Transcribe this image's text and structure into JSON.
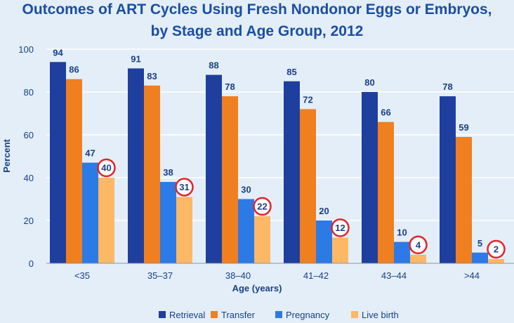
{
  "chart_data": {
    "type": "bar",
    "title": "Outcomes of ART Cycles Using Fresh Nondonor Eggs or Embryos,",
    "subtitle": "by Stage and Age Group, 2012",
    "xlabel": "Age (years)",
    "ylabel": "Percent",
    "ylim": [
      0,
      100
    ],
    "yticks": [
      0,
      20,
      40,
      60,
      80,
      100
    ],
    "categories": [
      "<35",
      "35–37",
      "38–40",
      "41–42",
      "43–44",
      ">44"
    ],
    "series": [
      {
        "name": "Retrieval",
        "color": "#1f3f9e",
        "values": [
          94,
          91,
          88,
          85,
          80,
          78
        ]
      },
      {
        "name": "Transfer",
        "color": "#f07f1f",
        "values": [
          86,
          83,
          78,
          72,
          66,
          59
        ]
      },
      {
        "name": "Pregnancy",
        "color": "#2c7ae6",
        "values": [
          47,
          38,
          30,
          20,
          10,
          5
        ]
      },
      {
        "name": "Live birth",
        "color": "#fdb866",
        "values": [
          40,
          31,
          22,
          12,
          4,
          2
        ]
      }
    ],
    "highlight_series": "Live birth",
    "highlight_color": "#e0242b",
    "grid": true,
    "legend": "bottom"
  }
}
